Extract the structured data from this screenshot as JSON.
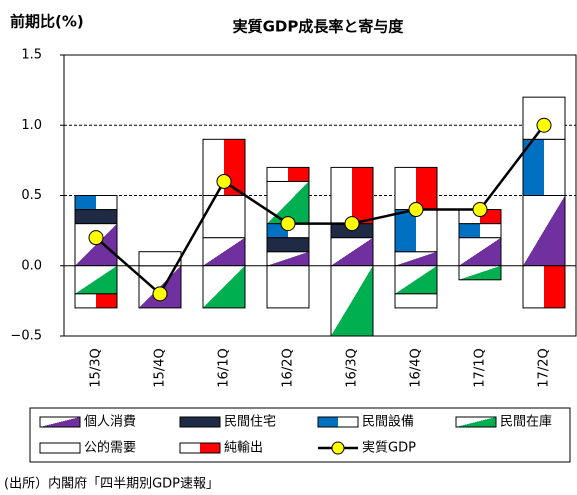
{
  "chart_data": {
    "type": "bar-line",
    "title": "実質GDP成長率と寄与度",
    "y_label": "前期比(%)",
    "source": "(出所）内閣府「四半期別GDP速報」",
    "categories": [
      "15/3Q",
      "15/4Q",
      "16/1Q",
      "16/2Q",
      "16/3Q",
      "16/4Q",
      "17/1Q",
      "17/2Q"
    ],
    "ylim": [
      -0.5,
      1.5
    ],
    "yticks": [
      {
        "value": -0.5,
        "label": "−0.5"
      },
      {
        "value": 0,
        "label": "0.0"
      },
      0.5,
      {
        "value": 1,
        "label": "1.0"
      },
      1.5
    ],
    "grid": true,
    "series": [
      {
        "name": "個人消費",
        "color": "#7030a0",
        "fill": "diagonal",
        "values": [
          0.3,
          -0.3,
          0.2,
          0.1,
          0.2,
          0.1,
          0.2,
          0.5
        ]
      },
      {
        "name": "民間住宅",
        "color": "#1f2a44",
        "fill": "solid",
        "values": [
          0.1,
          0,
          0,
          0.1,
          0.1,
          0,
          0,
          0
        ]
      },
      {
        "name": "民間設備",
        "color": "#0070c0",
        "fill": "left",
        "values": [
          0.1,
          0,
          0,
          0.1,
          0,
          0.3,
          0.1,
          0.4
        ]
      },
      {
        "name": "民間在庫",
        "color": "#00b050",
        "fill": "diagonal",
        "values": [
          -0.2,
          0,
          -0.3,
          0.3,
          -0.5,
          -0.2,
          -0.1,
          0
        ]
      },
      {
        "name": "公的需要",
        "color": "#ffffff",
        "fill": "solid",
        "values": [
          0,
          0.1,
          0.3,
          -0.3,
          0,
          -0.1,
          0,
          0.3
        ]
      },
      {
        "name": "純輸出",
        "color": "#ff0000",
        "fill": "right",
        "values": [
          -0.1,
          0,
          0.4,
          0.1,
          0.4,
          0.3,
          0.1,
          -0.3
        ]
      },
      {
        "name": "実質GDP",
        "type": "line",
        "color": "#ffff00",
        "values": [
          0.2,
          -0.2,
          0.6,
          0.3,
          0.3,
          0.4,
          0.4,
          1.0
        ]
      }
    ]
  }
}
